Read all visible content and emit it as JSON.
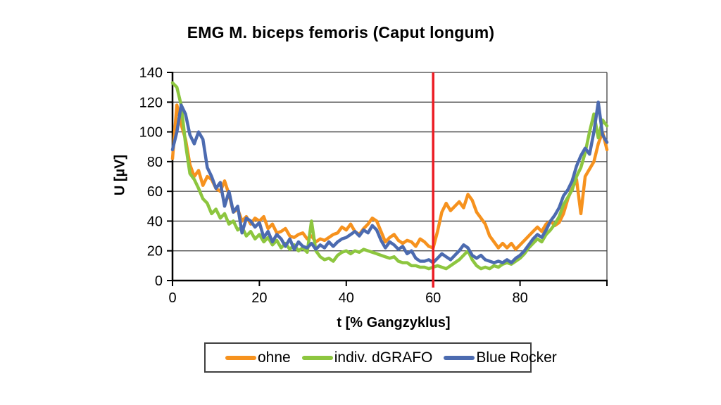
{
  "title": "EMG M. biceps femoris (Caput longum)",
  "colors": {
    "background": "#FFFFFF",
    "gridline": "#3F3F3F",
    "axis": "#000000",
    "marker_line": "#EC1C24"
  },
  "chart_data": {
    "type": "line",
    "title": "EMG M. biceps femoris (Caput longum)",
    "xlabel": "t [% Gangzyklus]",
    "ylabel": "U [µV]",
    "xlim": [
      0,
      100
    ],
    "ylim": [
      0,
      140
    ],
    "x_ticks": [
      0,
      20,
      40,
      60,
      80
    ],
    "x_tick_marks": [
      0,
      20,
      40,
      60,
      80,
      100
    ],
    "y_ticks": [
      0,
      20,
      40,
      60,
      80,
      100,
      120,
      140
    ],
    "grid": "horizontal",
    "legend_position": "bottom",
    "marker_line": {
      "x": 60,
      "color": "#EC1C24"
    },
    "x_start": 0,
    "x_step": 1,
    "series": [
      {
        "name": "ohne",
        "color": "#F6921E",
        "values": [
          82,
          118,
          105,
          95,
          78,
          70,
          74,
          64,
          70,
          68,
          62,
          60,
          67,
          58,
          46,
          48,
          40,
          43,
          38,
          42,
          40,
          43,
          35,
          38,
          32,
          33,
          35,
          30,
          29,
          31,
          32,
          28,
          30,
          26,
          28,
          27,
          29,
          31,
          32,
          36,
          34,
          38,
          33,
          31,
          35,
          38,
          42,
          40,
          33,
          26,
          29,
          31,
          27,
          25,
          27,
          26,
          23,
          28,
          26,
          23,
          22,
          33,
          46,
          52,
          47,
          50,
          53,
          49,
          58,
          54,
          46,
          42,
          38,
          30,
          26,
          22,
          25,
          22,
          25,
          21,
          24,
          27,
          30,
          33,
          36,
          33,
          38,
          40,
          37,
          39,
          45,
          55,
          62,
          68,
          45,
          70,
          75,
          80,
          92,
          100,
          88
        ]
      },
      {
        "name": "indiv. dGRAFO",
        "color": "#8DC63F",
        "values": [
          133,
          130,
          118,
          92,
          72,
          68,
          62,
          55,
          52,
          45,
          48,
          42,
          45,
          38,
          40,
          34,
          36,
          30,
          33,
          28,
          31,
          26,
          29,
          24,
          27,
          22,
          25,
          21,
          24,
          20,
          22,
          19,
          40,
          20,
          16,
          14,
          15,
          13,
          17,
          19,
          20,
          18,
          20,
          19,
          21,
          20,
          19,
          18,
          17,
          16,
          15,
          16,
          13,
          12,
          12,
          10,
          10,
          9,
          9,
          8,
          9,
          10,
          9,
          8,
          10,
          12,
          14,
          17,
          20,
          14,
          10,
          8,
          9,
          8,
          10,
          9,
          11,
          12,
          11,
          13,
          15,
          18,
          22,
          25,
          28,
          26,
          31,
          34,
          38,
          43,
          51,
          56,
          61,
          70,
          76,
          86,
          100,
          112,
          96,
          108,
          104
        ]
      },
      {
        "name": "Blue Rocker",
        "color": "#4C6BB0",
        "values": [
          88,
          100,
          118,
          112,
          98,
          92,
          100,
          95,
          76,
          70,
          62,
          66,
          50,
          60,
          46,
          50,
          32,
          42,
          40,
          36,
          39,
          29,
          33,
          26,
          31,
          28,
          23,
          28,
          21,
          26,
          23,
          22,
          25,
          21,
          24,
          22,
          26,
          23,
          26,
          28,
          29,
          31,
          33,
          30,
          34,
          32,
          37,
          34,
          27,
          22,
          26,
          24,
          21,
          23,
          18,
          20,
          15,
          13,
          13,
          14,
          12,
          15,
          18,
          16,
          14,
          17,
          20,
          24,
          22,
          17,
          15,
          17,
          14,
          13,
          12,
          13,
          12,
          14,
          12,
          15,
          17,
          20,
          24,
          28,
          31,
          29,
          34,
          40,
          44,
          49,
          57,
          61,
          67,
          77,
          84,
          89,
          85,
          100,
          120,
          98,
          93
        ]
      }
    ]
  }
}
